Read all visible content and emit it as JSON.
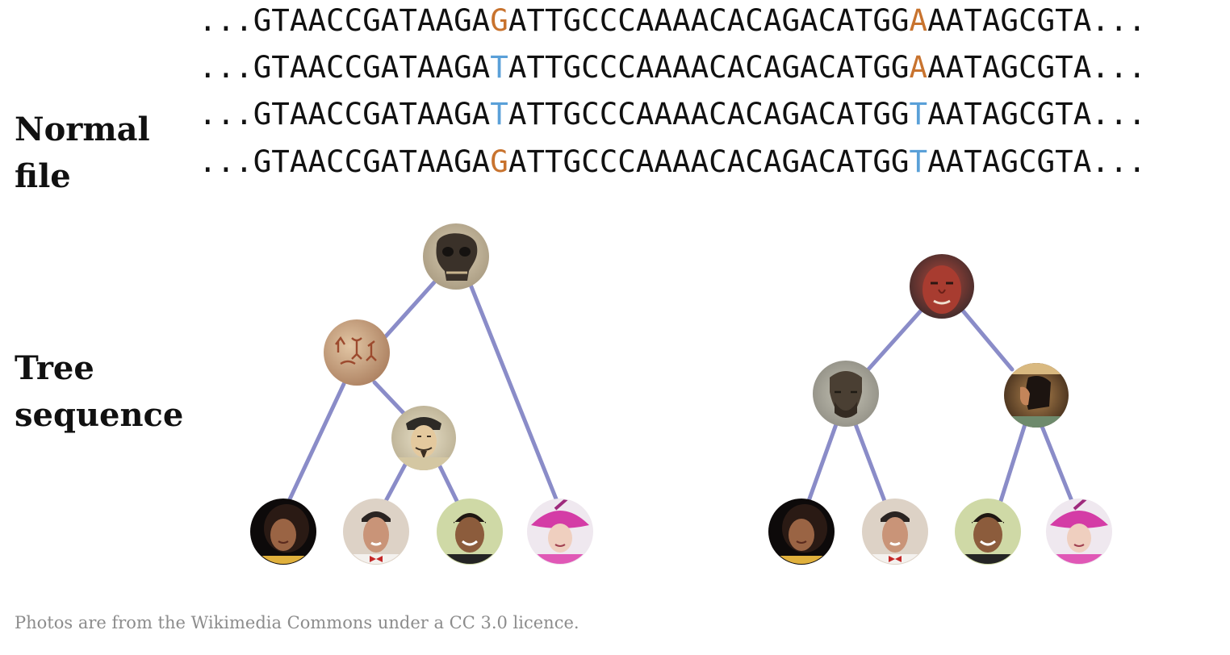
{
  "labels": {
    "normal_line1": "Normal",
    "normal_line2": "file",
    "tree_line1": "Tree",
    "tree_line2": "sequence"
  },
  "sequences": [
    {
      "prefix": "...GTAACCGATAAGA",
      "var1": "G",
      "mid": "ATTGCCCAAAACACAGACATGG",
      "var2": "A",
      "suffix": "AATAGCGTA..."
    },
    {
      "prefix": "...GTAACCGATAAGA",
      "var1": "T",
      "mid": "ATTGCCCAAAACACAGACATGG",
      "var2": "A",
      "suffix": "AATAGCGTA..."
    },
    {
      "prefix": "...GTAACCGATAAGA",
      "var1": "T",
      "mid": "ATTGCCCAAAACACAGACATGG",
      "var2": "T",
      "suffix": "AATAGCGTA..."
    },
    {
      "prefix": "...GTAACCGATAAGA",
      "var1": "G",
      "mid": "ATTGCCCAAAACACAGACATGG",
      "var2": "T",
      "suffix": "AATAGCGTA..."
    }
  ],
  "colors": {
    "allele_G": "#c8732e",
    "allele_A": "#c8732e",
    "allele_T": "#5aa0d8",
    "edge": "#8a8cc8",
    "text": "#111111",
    "credit": "#8c8c8c"
  },
  "trees": {
    "left": {
      "nodes": [
        {
          "id": "skull",
          "icon": "hominin-skull-icon",
          "kind": "ancestor"
        },
        {
          "id": "cave-art",
          "icon": "cave-painting-icon",
          "kind": "ancestor"
        },
        {
          "id": "khan",
          "icon": "mongol-emperor-portrait-icon",
          "kind": "ancestor"
        },
        {
          "id": "s1",
          "icon": "woman-speaking-portrait-icon",
          "kind": "sample"
        },
        {
          "id": "s2",
          "icon": "person-bowtie-portrait-icon",
          "kind": "sample"
        },
        {
          "id": "s3",
          "icon": "smiling-athlete-portrait-icon",
          "kind": "sample"
        },
        {
          "id": "s4",
          "icon": "queen-pink-hat-portrait-icon",
          "kind": "sample"
        }
      ],
      "edges": [
        [
          "skull",
          "cave-art"
        ],
        [
          "skull",
          "s4"
        ],
        [
          "cave-art",
          "khan"
        ],
        [
          "cave-art",
          "s1"
        ],
        [
          "khan",
          "s2"
        ],
        [
          "khan",
          "s3"
        ]
      ]
    },
    "right": {
      "nodes": [
        {
          "id": "neanderthal",
          "icon": "neanderthal-face-icon",
          "kind": "ancestor"
        },
        {
          "id": "bust",
          "icon": "greek-bust-icon",
          "kind": "ancestor"
        },
        {
          "id": "egypt",
          "icon": "egyptian-painting-icon",
          "kind": "ancestor"
        },
        {
          "id": "s1",
          "icon": "woman-speaking-portrait-icon",
          "kind": "sample"
        },
        {
          "id": "s2",
          "icon": "person-bowtie-portrait-icon",
          "kind": "sample"
        },
        {
          "id": "s3",
          "icon": "smiling-athlete-portrait-icon",
          "kind": "sample"
        },
        {
          "id": "s4",
          "icon": "queen-pink-hat-portrait-icon",
          "kind": "sample"
        }
      ],
      "edges": [
        [
          "neanderthal",
          "bust"
        ],
        [
          "neanderthal",
          "egypt"
        ],
        [
          "bust",
          "s1"
        ],
        [
          "bust",
          "s2"
        ],
        [
          "egypt",
          "s3"
        ],
        [
          "egypt",
          "s4"
        ]
      ]
    }
  },
  "credit": "Photos are from the Wikimedia Commons under a CC 3.0 licence."
}
